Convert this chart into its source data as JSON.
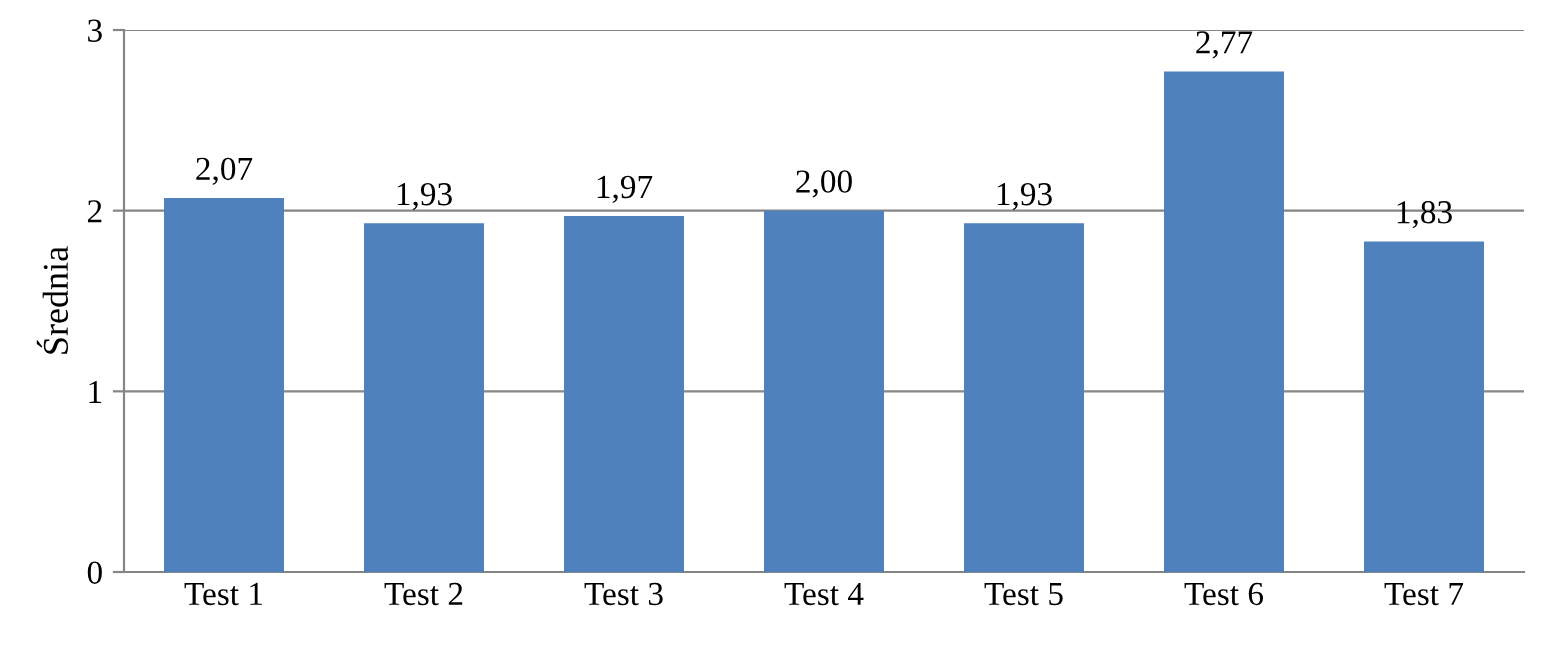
{
  "chart_data": {
    "type": "bar",
    "ylabel": "Średnia",
    "categories": [
      "Test 1",
      "Test 2",
      "Test 3",
      "Test 4",
      "Test 5",
      "Test 6",
      "Test 7"
    ],
    "values": [
      2.07,
      1.93,
      1.97,
      2.0,
      1.93,
      2.77,
      1.83
    ],
    "value_labels": [
      "2,07",
      "1,93",
      "1,97",
      "2,00",
      "1,93",
      "2,77",
      "1,83"
    ],
    "color": "#4f81bd",
    "ylim": [
      0,
      3
    ],
    "yticks": [
      0,
      1,
      2,
      3
    ],
    "grid": "y"
  }
}
